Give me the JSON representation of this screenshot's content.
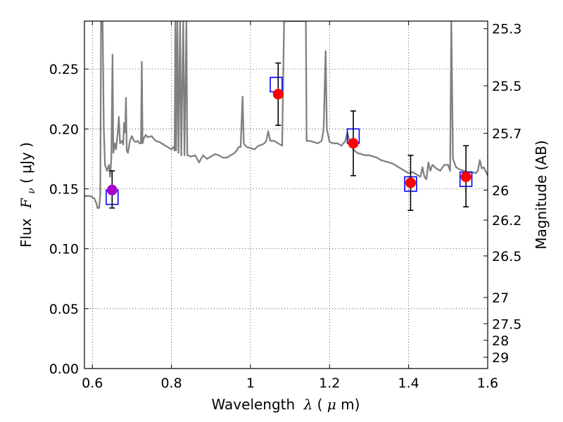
{
  "chart_data": {
    "type": "scatter",
    "xlabel": {
      "text": "Wavelength",
      "symbol": "λ",
      "unit_open": " (",
      "unit_sym": "μ",
      "unit_close": "m)"
    },
    "ylabel": {
      "text": "Flux",
      "symbol": "F",
      "subscript": "ν",
      "unit": " ( μJy )"
    },
    "y2label": "Magnitude (AB)",
    "xlim": [
      0.58,
      1.6
    ],
    "ylim": [
      0.0,
      0.29
    ],
    "grid": true,
    "x_ticks": [
      {
        "value": 0.6,
        "label": "0.6"
      },
      {
        "value": 0.8,
        "label": "0.8"
      },
      {
        "value": 1.0,
        "label": "1"
      },
      {
        "value": 1.2,
        "label": "1.2"
      },
      {
        "value": 1.4,
        "label": "1.4"
      },
      {
        "value": 1.6,
        "label": "1.6"
      }
    ],
    "y_ticks": [
      {
        "value": 0.0,
        "label": "0.00"
      },
      {
        "value": 0.05,
        "label": "0.05"
      },
      {
        "value": 0.1,
        "label": "0.10"
      },
      {
        "value": 0.15,
        "label": "0.15"
      },
      {
        "value": 0.2,
        "label": "0.20"
      },
      {
        "value": 0.25,
        "label": "0.25"
      }
    ],
    "magnitude_ticks": [
      {
        "label": "25.3",
        "flux": 0.2837
      },
      {
        "label": "25.5",
        "flux": 0.236
      },
      {
        "label": "25.7",
        "flux": 0.1963
      },
      {
        "label": "26",
        "flux": 0.1489
      },
      {
        "label": "26.2",
        "flux": 0.1239
      },
      {
        "label": "26.5",
        "flux": 0.094
      },
      {
        "label": "27",
        "flux": 0.0593
      },
      {
        "label": "27.5",
        "flux": 0.0374
      },
      {
        "label": "28",
        "flux": 0.0236
      },
      {
        "label": "29",
        "flux": 0.0094
      }
    ],
    "observations": [
      {
        "wavelength": 0.65,
        "flux": 0.149,
        "err_low": 0.015,
        "err_high": 0.016,
        "color": "#aa00cc"
      },
      {
        "wavelength": 1.07,
        "flux": 0.229,
        "err_low": 0.026,
        "err_high": 0.026,
        "color": "#ff0000"
      },
      {
        "wavelength": 1.26,
        "flux": 0.188,
        "err_low": 0.027,
        "err_high": 0.027,
        "color": "#ff0000"
      },
      {
        "wavelength": 1.405,
        "flux": 0.155,
        "err_low": 0.023,
        "err_high": 0.023,
        "color": "#ff0000"
      },
      {
        "wavelength": 1.545,
        "flux": 0.16,
        "err_low": 0.025,
        "err_high": 0.026,
        "color": "#ff0000"
      }
    ],
    "model_photometry": [
      {
        "wavelength": 0.65,
        "flux": 0.143,
        "half_width": 0.015,
        "half_height": 0.006
      },
      {
        "wavelength": 1.065,
        "flux": 0.237,
        "half_width": 0.015,
        "half_height": 0.006
      },
      {
        "wavelength": 1.26,
        "flux": 0.194,
        "half_width": 0.015,
        "half_height": 0.006
      },
      {
        "wavelength": 1.405,
        "flux": 0.154,
        "half_width": 0.015,
        "half_height": 0.006
      },
      {
        "wavelength": 1.545,
        "flux": 0.158,
        "half_width": 0.015,
        "half_height": 0.006
      }
    ],
    "sed_model": [
      [
        0.58,
        0.144
      ],
      [
        0.595,
        0.144
      ],
      [
        0.605,
        0.142
      ],
      [
        0.61,
        0.138
      ],
      [
        0.613,
        0.134
      ],
      [
        0.617,
        0.134
      ],
      [
        0.62,
        0.145
      ],
      [
        0.622,
        0.29
      ],
      [
        0.626,
        0.29
      ],
      [
        0.629,
        0.2
      ],
      [
        0.632,
        0.17
      ],
      [
        0.637,
        0.165
      ],
      [
        0.642,
        0.17
      ],
      [
        0.645,
        0.16
      ],
      [
        0.648,
        0.175
      ],
      [
        0.651,
        0.262
      ],
      [
        0.653,
        0.18
      ],
      [
        0.657,
        0.188
      ],
      [
        0.66,
        0.183
      ],
      [
        0.665,
        0.2
      ],
      [
        0.667,
        0.21
      ],
      [
        0.67,
        0.188
      ],
      [
        0.675,
        0.19
      ],
      [
        0.678,
        0.187
      ],
      [
        0.68,
        0.205
      ],
      [
        0.683,
        0.197
      ],
      [
        0.685,
        0.226
      ],
      [
        0.687,
        0.182
      ],
      [
        0.69,
        0.18
      ],
      [
        0.695,
        0.19
      ],
      [
        0.7,
        0.194
      ],
      [
        0.705,
        0.19
      ],
      [
        0.71,
        0.189
      ],
      [
        0.715,
        0.19
      ],
      [
        0.72,
        0.188
      ],
      [
        0.723,
        0.188
      ],
      [
        0.725,
        0.256
      ],
      [
        0.727,
        0.188
      ],
      [
        0.73,
        0.192
      ],
      [
        0.735,
        0.195
      ],
      [
        0.74,
        0.193
      ],
      [
        0.75,
        0.194
      ],
      [
        0.76,
        0.19
      ],
      [
        0.77,
        0.189
      ],
      [
        0.78,
        0.187
      ],
      [
        0.79,
        0.185
      ],
      [
        0.8,
        0.183
      ],
      [
        0.805,
        0.185
      ],
      [
        0.808,
        0.182
      ],
      [
        0.81,
        0.29
      ],
      [
        0.812,
        0.182
      ],
      [
        0.815,
        0.29
      ],
      [
        0.818,
        0.18
      ],
      [
        0.822,
        0.29
      ],
      [
        0.825,
        0.178
      ],
      [
        0.83,
        0.29
      ],
      [
        0.833,
        0.178
      ],
      [
        0.838,
        0.29
      ],
      [
        0.84,
        0.178
      ],
      [
        0.85,
        0.177
      ],
      [
        0.86,
        0.178
      ],
      [
        0.87,
        0.172
      ],
      [
        0.88,
        0.178
      ],
      [
        0.89,
        0.175
      ],
      [
        0.9,
        0.177
      ],
      [
        0.91,
        0.179
      ],
      [
        0.92,
        0.178
      ],
      [
        0.93,
        0.176
      ],
      [
        0.94,
        0.176
      ],
      [
        0.95,
        0.178
      ],
      [
        0.96,
        0.18
      ],
      [
        0.965,
        0.182
      ],
      [
        0.97,
        0.185
      ],
      [
        0.975,
        0.185
      ],
      [
        0.98,
        0.227
      ],
      [
        0.983,
        0.188
      ],
      [
        0.99,
        0.185
      ],
      [
        1.0,
        0.184
      ],
      [
        1.01,
        0.183
      ],
      [
        1.02,
        0.186
      ],
      [
        1.03,
        0.187
      ],
      [
        1.035,
        0.188
      ],
      [
        1.04,
        0.19
      ],
      [
        1.045,
        0.198
      ],
      [
        1.05,
        0.19
      ],
      [
        1.06,
        0.19
      ],
      [
        1.07,
        0.188
      ],
      [
        1.08,
        0.186
      ],
      [
        1.085,
        0.29
      ],
      [
        1.14,
        0.29
      ],
      [
        1.142,
        0.19
      ],
      [
        1.15,
        0.19
      ],
      [
        1.16,
        0.189
      ],
      [
        1.17,
        0.188
      ],
      [
        1.18,
        0.19
      ],
      [
        1.185,
        0.2
      ],
      [
        1.19,
        0.265
      ],
      [
        1.193,
        0.2
      ],
      [
        1.2,
        0.189
      ],
      [
        1.21,
        0.188
      ],
      [
        1.22,
        0.188
      ],
      [
        1.23,
        0.186
      ],
      [
        1.24,
        0.19
      ],
      [
        1.245,
        0.197
      ],
      [
        1.25,
        0.19
      ],
      [
        1.26,
        0.183
      ],
      [
        1.27,
        0.18
      ],
      [
        1.28,
        0.179
      ],
      [
        1.29,
        0.178
      ],
      [
        1.3,
        0.178
      ],
      [
        1.31,
        0.177
      ],
      [
        1.32,
        0.176
      ],
      [
        1.33,
        0.174
      ],
      [
        1.34,
        0.173
      ],
      [
        1.35,
        0.172
      ],
      [
        1.36,
        0.171
      ],
      [
        1.37,
        0.169
      ],
      [
        1.38,
        0.167
      ],
      [
        1.39,
        0.165
      ],
      [
        1.4,
        0.163
      ],
      [
        1.41,
        0.164
      ],
      [
        1.42,
        0.162
      ],
      [
        1.43,
        0.16
      ],
      [
        1.435,
        0.168
      ],
      [
        1.44,
        0.16
      ],
      [
        1.445,
        0.158
      ],
      [
        1.45,
        0.172
      ],
      [
        1.455,
        0.165
      ],
      [
        1.46,
        0.17
      ],
      [
        1.47,
        0.167
      ],
      [
        1.48,
        0.165
      ],
      [
        1.49,
        0.17
      ],
      [
        1.5,
        0.17
      ],
      [
        1.505,
        0.165
      ],
      [
        1.508,
        0.29
      ],
      [
        1.512,
        0.175
      ],
      [
        1.52,
        0.168
      ],
      [
        1.53,
        0.166
      ],
      [
        1.54,
        0.165
      ],
      [
        1.55,
        0.164
      ],
      [
        1.56,
        0.164
      ],
      [
        1.57,
        0.163
      ],
      [
        1.575,
        0.165
      ],
      [
        1.58,
        0.174
      ],
      [
        1.585,
        0.167
      ],
      [
        1.59,
        0.168
      ],
      [
        1.6,
        0.161
      ]
    ],
    "colors": {
      "model_line": "#808080",
      "photometry_box": "#0000ff",
      "error_bar": "#000000"
    }
  }
}
